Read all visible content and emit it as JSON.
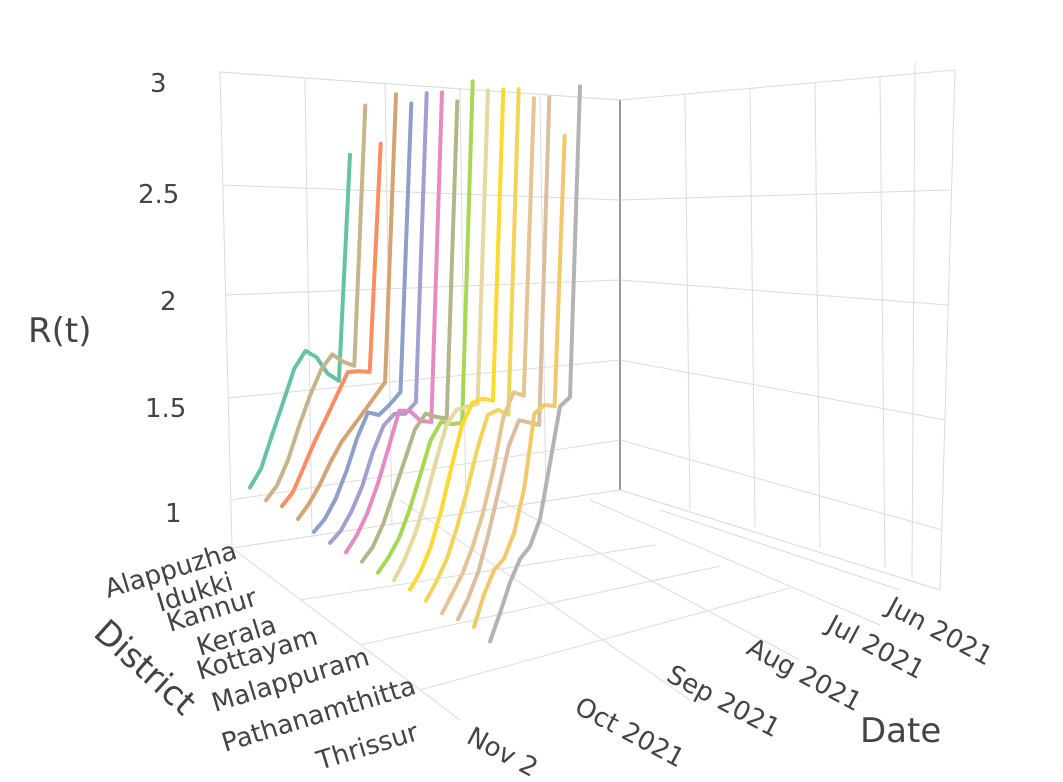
{
  "chart_data": {
    "type": "line",
    "subtype": "3d-line",
    "title": "",
    "xlabel": "Date",
    "ylabel": "District",
    "zlabel": "R(t)",
    "z_ticks": [
      "1",
      "1.5",
      "2",
      "2.5",
      "3"
    ],
    "zlim": [
      0.9,
      3.05
    ],
    "x_ticks": [
      "Jun 2021",
      "Jul 2021",
      "Aug 2021",
      "Sep 2021",
      "Oct 2021",
      "Nov 2"
    ],
    "y_ticks": [
      "Alappuzha",
      "Idukki",
      "Kannur",
      "Kerala",
      "Kottayam",
      "Malappuram",
      "Pathanamthitta",
      "Thrissur"
    ],
    "grid": true,
    "legend": false,
    "series": [
      {
        "district": "Alappuzha",
        "color": "#66c2a5",
        "values": [
          2.65,
          1.5,
          1.55,
          1.65,
          1.7,
          1.62,
          1.45,
          1.28,
          1.1,
          1.0
        ]
      },
      {
        "district": "Alappuzha",
        "color": "#c9b38c",
        "values": [
          2.9,
          1.58,
          1.62,
          1.68,
          1.62,
          1.5,
          1.35,
          1.18,
          1.05,
          0.98
        ]
      },
      {
        "district": "Idukki",
        "color": "#fc8d62",
        "values": [
          2.7,
          1.55,
          1.58,
          1.6,
          1.5,
          1.4,
          1.3,
          1.18,
          1.06,
          1.0
        ]
      },
      {
        "district": "Idukki",
        "color": "#d4a373",
        "values": [
          2.95,
          1.5,
          1.45,
          1.4,
          1.35,
          1.3,
          1.22,
          1.12,
          1.04,
          0.98
        ]
      },
      {
        "district": "Kannur",
        "color": "#8da0cb",
        "values": [
          2.9,
          1.45,
          1.42,
          1.4,
          1.45,
          1.35,
          1.2,
          1.08,
          1.0,
          0.96
        ]
      },
      {
        "district": "Kannur",
        "color": "#a39fd0",
        "values": [
          2.95,
          1.4,
          1.38,
          1.42,
          1.4,
          1.3,
          1.15,
          1.05,
          0.98,
          0.95
        ]
      },
      {
        "district": "Kerala",
        "color": "#e78ac3",
        "values": [
          2.95,
          1.3,
          1.35,
          1.45,
          1.5,
          1.35,
          1.2,
          1.08,
          1.0,
          0.95
        ]
      },
      {
        "district": "Kottayam",
        "color": "#b5b58a",
        "values": [
          2.9,
          1.32,
          1.38,
          1.45,
          1.42,
          1.3,
          1.18,
          1.06,
          0.98,
          0.95
        ]
      },
      {
        "district": "Kottayam",
        "color": "#a6d854",
        "values": [
          3.0,
          1.3,
          1.35,
          1.42,
          1.38,
          1.25,
          1.12,
          1.02,
          0.97,
          0.94
        ]
      },
      {
        "district": "Malappuram",
        "color": "#e5d8a0",
        "values": [
          2.95,
          1.4,
          1.45,
          1.5,
          1.48,
          1.35,
          1.2,
          1.08,
          1.0,
          0.95
        ]
      },
      {
        "district": "Malappuram",
        "color": "#ffd92f",
        "values": [
          2.95,
          1.42,
          1.5,
          1.55,
          1.5,
          1.35,
          1.18,
          1.05,
          0.98,
          0.95
        ]
      },
      {
        "district": "Pathanamthitta",
        "color": "#f0d55a",
        "values": [
          2.95,
          1.35,
          1.45,
          1.5,
          1.4,
          1.25,
          1.12,
          1.02,
          0.97,
          0.94
        ]
      },
      {
        "district": "Pathanamthitta",
        "color": "#e5c494",
        "values": [
          2.9,
          1.45,
          1.55,
          1.5,
          1.3,
          1.15,
          1.05,
          0.98,
          0.95,
          0.92
        ]
      },
      {
        "district": "Pathanamthitta",
        "color": "#d9bfa0",
        "values": [
          2.9,
          1.3,
          1.4,
          1.5,
          1.45,
          1.3,
          1.15,
          1.03,
          0.97,
          0.94
        ]
      },
      {
        "district": "Thrissur",
        "color": "#f1c96b",
        "values": [
          2.7,
          1.4,
          1.5,
          1.55,
          1.25,
          1.1,
          1.05,
          1.08,
          1.04,
          0.95
        ]
      },
      {
        "district": "Thrissur",
        "color": "#b3b3b3",
        "values": [
          2.95,
          1.45,
          1.5,
          1.3,
          1.1,
          1.05,
          1.08,
          1.05,
          0.98,
          0.92
        ]
      }
    ]
  }
}
